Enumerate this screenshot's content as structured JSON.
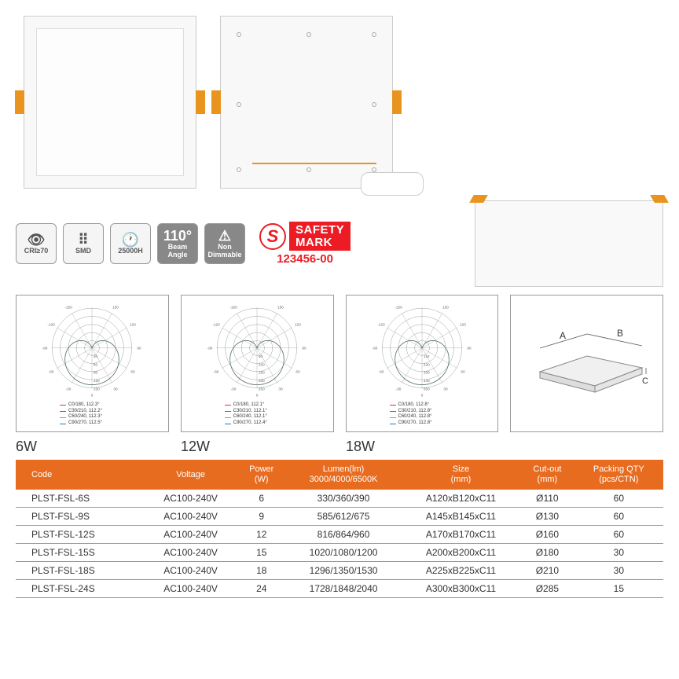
{
  "icons": [
    {
      "glyph": "👁",
      "label": "CRI≥70",
      "dark": false
    },
    {
      "glyph": "⠿",
      "label": "SMD",
      "dark": false
    },
    {
      "glyph": "🕐",
      "label": "25000H",
      "dark": false
    },
    {
      "glyph": "110°",
      "label": "Beam Angle",
      "dark": true
    },
    {
      "glyph": "⚠",
      "label": "Non Dimmable",
      "dark": true
    }
  ],
  "safety": {
    "brand_line1": "SAFETY",
    "brand_line2": "MARK",
    "number": "123456-00"
  },
  "polar_diagrams": [
    {
      "watt": "6W",
      "angles": [
        "-/+180",
        "-150",
        "150",
        "-120",
        "120",
        "-90",
        "90",
        "-60",
        "60",
        "-30",
        "30",
        "0"
      ],
      "rings": [
        "30",
        "60",
        "90",
        "120",
        "150"
      ],
      "legend": [
        {
          "c": "#e8302a",
          "t": "C0/180, 112.3°"
        },
        {
          "c": "#1a9e4b",
          "t": "C30/210, 112.2°"
        },
        {
          "c": "#e88c1f",
          "t": "C60/240, 112.3°"
        },
        {
          "c": "#2a7ab8",
          "t": "C90/270, 112.5°"
        }
      ]
    },
    {
      "watt": "12W",
      "angles": [
        "-/+180",
        "-150",
        "150",
        "-120",
        "120",
        "-90",
        "90",
        "-60",
        "60",
        "-30",
        "30",
        "0"
      ],
      "rings": [
        "50",
        "100",
        "150",
        "200",
        "250"
      ],
      "legend": [
        {
          "c": "#e8302a",
          "t": "C0/180, 112.1°"
        },
        {
          "c": "#1a9e4b",
          "t": "C30/210, 112.1°"
        },
        {
          "c": "#e88c1f",
          "t": "C60/240, 112.1°"
        },
        {
          "c": "#2a7ab8",
          "t": "C90/270, 112.4°"
        }
      ]
    },
    {
      "watt": "18W",
      "angles": [
        "-/+180",
        "-150",
        "150",
        "-120",
        "120",
        "-90",
        "90",
        "-60",
        "60",
        "-30",
        "30",
        "0"
      ],
      "rings": [
        "110",
        "220",
        "330",
        "440",
        "550"
      ],
      "legend": [
        {
          "c": "#e8302a",
          "t": "C0/180, 112.8°"
        },
        {
          "c": "#1a9e4b",
          "t": "C30/210, 112.8°"
        },
        {
          "c": "#e88c1f",
          "t": "C60/240, 112.8°"
        },
        {
          "c": "#2a7ab8",
          "t": "C90/270, 112.8°"
        }
      ]
    }
  ],
  "dim_labels": {
    "A": "A",
    "B": "B",
    "C": "C"
  },
  "table": {
    "header_bg": "#e86c1f",
    "columns": [
      "Code",
      "Voltage",
      "Power\n(W)",
      "Lumen(lm)\n3000/4000/6500K",
      "Size\n(mm)",
      "Cut-out\n(mm)",
      "Packing QTY\n(pcs/CTN)"
    ],
    "rows": [
      [
        "PLST-FSL-6S",
        "AC100-240V",
        "6",
        "330/360/390",
        "A120xB120xC11",
        "Ø110",
        "60"
      ],
      [
        "PLST-FSL-9S",
        "AC100-240V",
        "9",
        "585/612/675",
        "A145xB145xC11",
        "Ø130",
        "60"
      ],
      [
        "PLST-FSL-12S",
        "AC100-240V",
        "12",
        "816/864/960",
        "A170xB170xC11",
        "Ø160",
        "60"
      ],
      [
        "PLST-FSL-15S",
        "AC100-240V",
        "15",
        "1020/1080/1200",
        "A200xB200xC11",
        "Ø180",
        "30"
      ],
      [
        "PLST-FSL-18S",
        "AC100-240V",
        "18",
        "1296/1350/1530",
        "A225xB225xC11",
        "Ø210",
        "30"
      ],
      [
        "PLST-FSL-24S",
        "AC100-240V",
        "24",
        "1728/1848/2040",
        "A300xB300xC11",
        "Ø285",
        "15"
      ]
    ]
  },
  "colors": {
    "accent": "#e86c1f",
    "red": "#ed1c24",
    "clip": "#e8941f",
    "border": "#999"
  }
}
